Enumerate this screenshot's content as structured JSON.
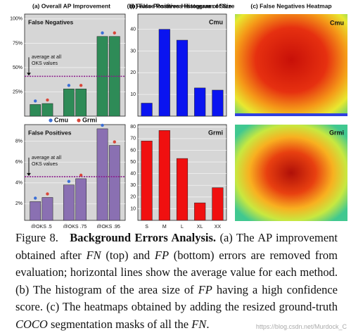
{
  "chart_data": [
    {
      "type": "bar",
      "title": "(a) Overall AP Improvement",
      "label": "False Negatives",
      "categories": [
        null,
        null,
        null
      ],
      "bar_color": "#2e8b57",
      "series": [
        {
          "name": "Cmu",
          "color": "#3b6fd6",
          "values": [
            12,
            28,
            82
          ]
        },
        {
          "name": "Grmi",
          "color": "#d9473a",
          "values": [
            13,
            28,
            82
          ]
        }
      ],
      "average": {
        "value": 41,
        "label": [
          "average at all",
          "OKS values"
        ],
        "color": "#8b1a8b"
      },
      "ylim": [
        0,
        105
      ],
      "yticks": [
        {
          "value": 25,
          "label": "25%"
        },
        {
          "value": 50,
          "label": "50%"
        },
        {
          "value": 75,
          "label": "75%"
        },
        {
          "value": 100,
          "label": "100%"
        }
      ],
      "grid": true
    },
    {
      "type": "bar",
      "label": "False Positives",
      "categories": [
        "@OKS .5",
        "@OKS .75",
        "@OKS .95"
      ],
      "bar_color": "#8a70b2",
      "series": [
        {
          "color": "#3b6fd6",
          "values": [
            2.2,
            3.8,
            9.2
          ]
        },
        {
          "color": "#d9473a",
          "values": [
            2.6,
            4.4,
            7.6
          ]
        }
      ],
      "average": {
        "value": 4.6,
        "label": [
          "average at all",
          "OKS values"
        ],
        "color": "#8b1a8b"
      },
      "ylim": [
        0.4,
        9.6
      ],
      "yticks": [
        {
          "value": 2,
          "label": "2%"
        },
        {
          "value": 4,
          "label": "4%"
        },
        {
          "value": 6,
          "label": "6%"
        },
        {
          "value": 8,
          "label": "8%"
        }
      ],
      "grid": true
    },
    {
      "type": "bar",
      "title": "(b) False Positives Histogram of Size",
      "label": "Cmu",
      "categories": [
        null,
        null,
        null,
        null,
        null
      ],
      "color": "#0a14f0",
      "values": [
        6,
        40,
        35,
        13,
        12
      ],
      "ylim": [
        0,
        47
      ],
      "yticks": [
        10,
        20,
        30,
        40
      ],
      "grid": true
    },
    {
      "type": "bar",
      "label": "Grmi",
      "categories": [
        "S",
        "M",
        "L",
        "XL",
        "XX"
      ],
      "color": "#f01010",
      "values": [
        68,
        77,
        53,
        15,
        28
      ],
      "ylim": [
        0,
        82
      ],
      "yticks": [
        10,
        20,
        30,
        40,
        50,
        60,
        70,
        80
      ],
      "grid": true
    }
  ],
  "heatmaps": {
    "title": "(c) False Negatives Heatmap",
    "labels": [
      "Cmu",
      "Grmi"
    ]
  },
  "caption": [
    "Figure 8.",
    "Background Errors Analysis.",
    "(a) The AP improvement obtained after",
    "FN",
    "(top) and",
    "FP",
    "(bottom) errors are removed from evaluation; horizontal lines show the average value for each method. (b) The histogram of the area size of",
    "FP",
    "having a high confidence score. (c) The heatmaps obtained by adding the resized ground-truth",
    "COCO",
    "segmentation masks of all the",
    "FN",
    "."
  ],
  "watermark": "https://blog.csdn.net/Murdock_C"
}
